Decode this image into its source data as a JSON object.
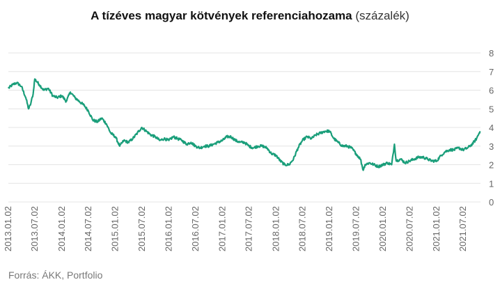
{
  "title_bold": "A tízéves magyar kötvények referenciahozama",
  "title_unit": "(százalék)",
  "source": "Forrás: ÁKK, Portfolio",
  "chart_data": {
    "type": "line",
    "title": "A tízéves magyar kötvények referenciahozama (százalék)",
    "xlabel": "",
    "ylabel": "",
    "ylim": [
      0,
      8
    ],
    "yticks": [
      "0",
      "1",
      "2",
      "3",
      "4",
      "5",
      "6",
      "7",
      "8"
    ],
    "y_axis_side": "right",
    "grid": true,
    "legend": "none",
    "color": "#1a9e7a",
    "xticks": [
      "2013.01.02",
      "2013.07.02",
      "2014.01.02",
      "2014.07.02",
      "2015.01.02",
      "2015.07.02",
      "2016.01.02",
      "2016.07.02",
      "2017.01.02",
      "2017.07.02",
      "2018.01.02",
      "2018.07.02",
      "2019.01.02",
      "2019.07.02",
      "2020.01.02",
      "2020.07.02",
      "2021.01.02",
      "2021.07.02"
    ],
    "series": [
      {
        "x": [
          "2013-01-02",
          "2013-02-01",
          "2013-03-01",
          "2013-04-01",
          "2013-05-01",
          "2013-05-20",
          "2013-06-01",
          "2013-06-20",
          "2013-07-01",
          "2013-08-01",
          "2013-09-01",
          "2013-10-01",
          "2013-11-01",
          "2013-12-01",
          "2014-01-02",
          "2014-02-01",
          "2014-03-01",
          "2014-04-01",
          "2014-05-01",
          "2014-06-01",
          "2014-07-01",
          "2014-08-01",
          "2014-09-01",
          "2014-10-01",
          "2014-11-01",
          "2014-12-01",
          "2015-01-02",
          "2015-02-01",
          "2015-03-01",
          "2015-04-01",
          "2015-05-01",
          "2015-06-01",
          "2015-07-01",
          "2015-08-01",
          "2015-09-01",
          "2015-10-01",
          "2015-11-01",
          "2015-12-01",
          "2016-01-02",
          "2016-02-01",
          "2016-03-01",
          "2016-04-01",
          "2016-05-01",
          "2016-06-01",
          "2016-07-01",
          "2016-08-01",
          "2016-09-01",
          "2016-10-01",
          "2016-11-01",
          "2016-12-01",
          "2017-01-02",
          "2017-02-01",
          "2017-03-01",
          "2017-04-01",
          "2017-05-01",
          "2017-06-01",
          "2017-07-01",
          "2017-08-01",
          "2017-09-01",
          "2017-10-01",
          "2017-11-01",
          "2017-12-01",
          "2018-01-02",
          "2018-02-01",
          "2018-03-01",
          "2018-04-01",
          "2018-05-01",
          "2018-06-01",
          "2018-07-01",
          "2018-08-01",
          "2018-09-01",
          "2018-10-01",
          "2018-11-01",
          "2018-12-01",
          "2019-01-02",
          "2019-02-01",
          "2019-03-01",
          "2019-04-01",
          "2019-05-01",
          "2019-06-01",
          "2019-07-01",
          "2019-08-01",
          "2019-08-20",
          "2019-09-01",
          "2019-10-01",
          "2019-11-01",
          "2019-12-01",
          "2020-01-02",
          "2020-02-01",
          "2020-03-01",
          "2020-03-20",
          "2020-04-01",
          "2020-05-01",
          "2020-06-01",
          "2020-07-01",
          "2020-08-01",
          "2020-09-01",
          "2020-10-01",
          "2020-11-01",
          "2020-12-01",
          "2021-01-02",
          "2021-02-01",
          "2021-03-01",
          "2021-04-01",
          "2021-05-01",
          "2021-06-01",
          "2021-07-01",
          "2021-08-01",
          "2021-09-01",
          "2021-10-01",
          "2021-10-25"
        ],
        "values": [
          6.1,
          6.3,
          6.4,
          6.2,
          5.6,
          5.0,
          5.2,
          5.8,
          6.6,
          6.3,
          6.0,
          6.1,
          5.7,
          5.6,
          5.7,
          5.4,
          5.9,
          5.6,
          5.4,
          5.2,
          4.9,
          4.4,
          4.3,
          4.5,
          4.2,
          3.7,
          3.5,
          3.0,
          3.3,
          3.2,
          3.4,
          3.7,
          4.0,
          3.8,
          3.6,
          3.5,
          3.3,
          3.4,
          3.3,
          3.5,
          3.4,
          3.3,
          3.1,
          3.2,
          3.0,
          2.9,
          3.0,
          3.0,
          3.1,
          3.2,
          3.3,
          3.5,
          3.5,
          3.3,
          3.2,
          3.2,
          3.0,
          2.9,
          3.0,
          3.0,
          2.9,
          2.6,
          2.5,
          2.2,
          2.0,
          2.0,
          2.3,
          2.9,
          3.3,
          3.5,
          3.4,
          3.6,
          3.7,
          3.8,
          3.8,
          3.4,
          3.2,
          3.0,
          3.0,
          2.9,
          2.6,
          2.3,
          1.7,
          2.0,
          2.1,
          2.0,
          1.9,
          2.0,
          2.1,
          2.0,
          3.1,
          2.2,
          2.3,
          2.1,
          2.2,
          2.3,
          2.4,
          2.4,
          2.3,
          2.2,
          2.2,
          2.5,
          2.7,
          2.8,
          2.8,
          2.9,
          2.8,
          2.9,
          3.1,
          3.4,
          3.8
        ]
      }
    ]
  }
}
